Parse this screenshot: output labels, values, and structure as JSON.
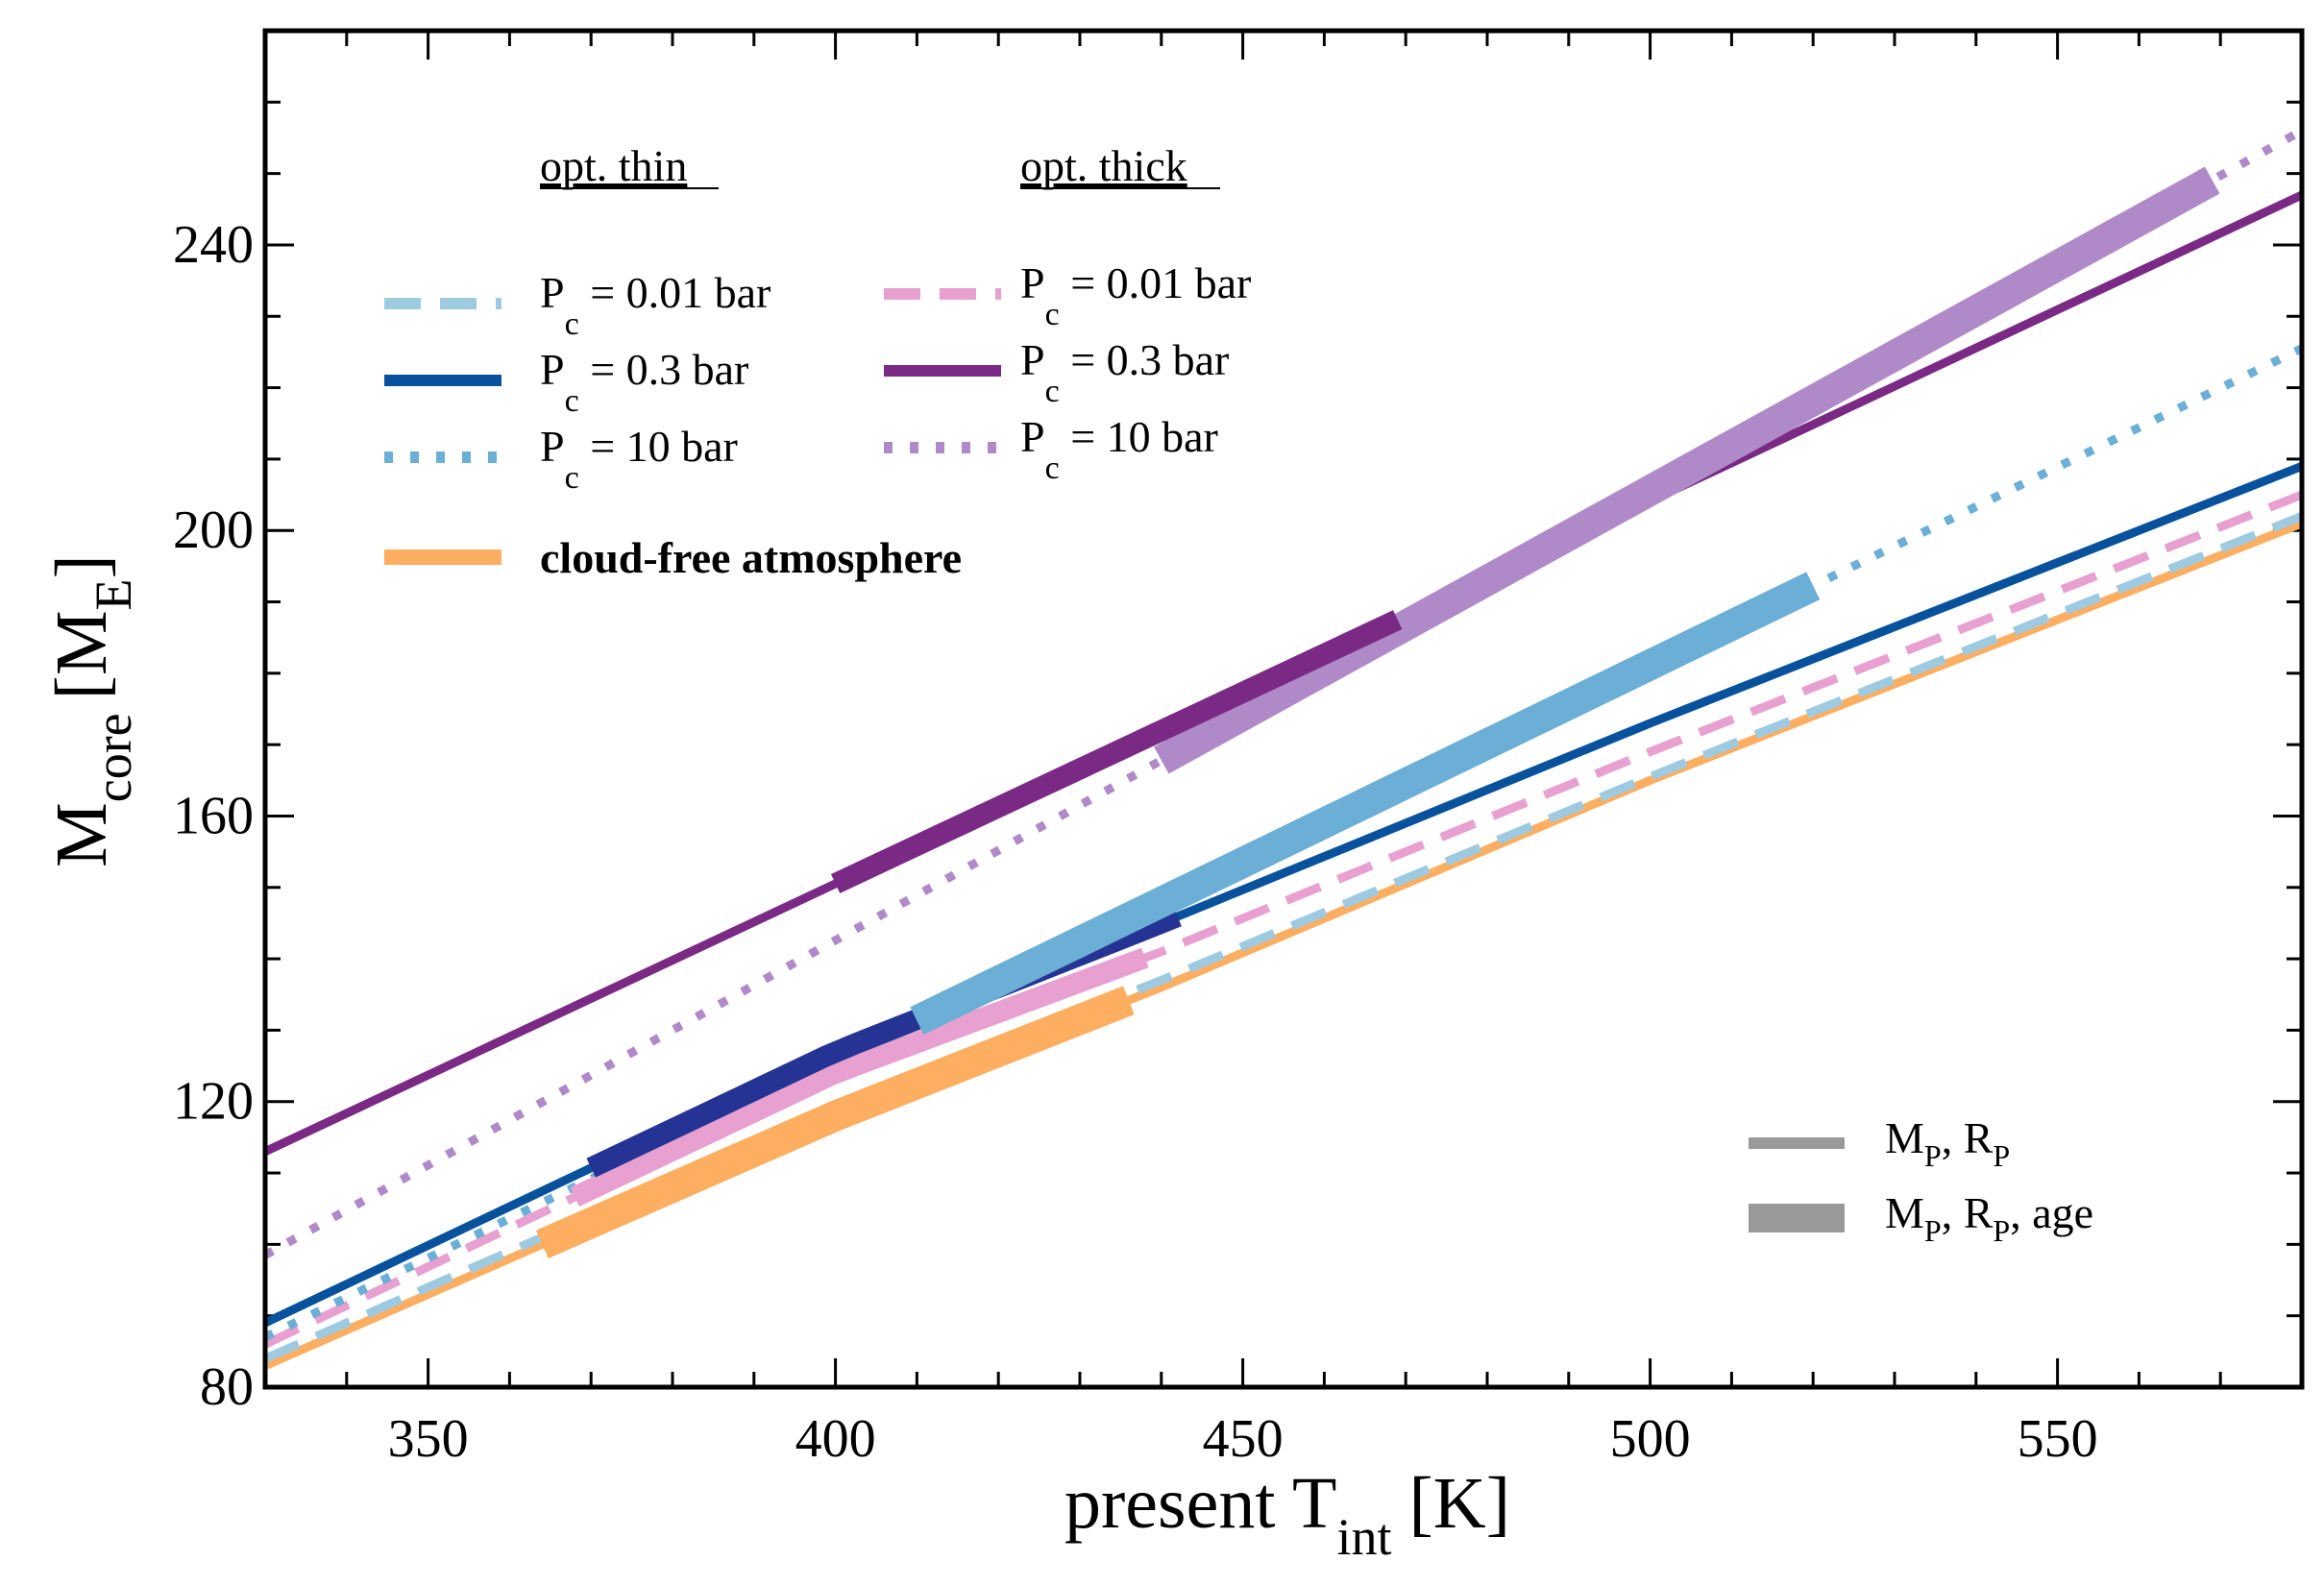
{
  "chart_data": {
    "type": "line",
    "xlabel": "present T",
    "xlabel_sub": "int",
    "xlabel_unit": "[K]",
    "ylabel_main": "M",
    "ylabel_sub": "core",
    "ylabel_unit_open": "[M",
    "ylabel_unit_sub": "E",
    "ylabel_unit_close": "]",
    "xlim": [
      330,
      580
    ],
    "ylim": [
      80,
      270
    ],
    "xticks": [
      350,
      400,
      450,
      500,
      550
    ],
    "yticks": [
      80,
      120,
      160,
      200,
      240
    ],
    "legend": {
      "thin_header": "opt. thin",
      "thick_header": "opt. thick",
      "entries": [
        {
          "group": "thin",
          "prefix": "P",
          "sub": "c",
          "text": " = 0.01 bar",
          "color": "#9ecae1",
          "style": "dashed"
        },
        {
          "group": "thin",
          "prefix": "P",
          "sub": "c",
          "text": " = 0.3 bar",
          "color": "#08519c",
          "style": "solid"
        },
        {
          "group": "thin",
          "prefix": "P",
          "sub": "c",
          "text": " = 10 bar",
          "color": "#6baed6",
          "style": "dotted"
        },
        {
          "group": "thick",
          "prefix": "P",
          "sub": "c",
          "text": " = 0.01 bar",
          "color": "#e7a0d0",
          "style": "dashed"
        },
        {
          "group": "thick",
          "prefix": "P",
          "sub": "c",
          "text": " = 0.3 bar",
          "color": "#7a2a85",
          "style": "solid"
        },
        {
          "group": "thick",
          "prefix": "P",
          "sub": "c",
          "text": " = 10 bar",
          "color": "#b08ac8",
          "style": "dotted"
        }
      ],
      "cloudfree_label": "cloud-free atmosphere",
      "cloudfree_color": "#fdae61",
      "width_key": [
        {
          "label_a": "M",
          "sub_a": "P",
          "label_b": ", R",
          "sub_b": "P",
          "label_c": ""
        },
        {
          "label_a": "M",
          "sub_a": "P",
          "label_b": ", R",
          "sub_b": "P",
          "label_c": ", age"
        }
      ],
      "width_key_color": "#999999"
    },
    "series": [
      {
        "name": "opt. thick, Pc = 0.3 bar",
        "color": "#7a2a85",
        "style": "solid",
        "x": [
          330,
          580
        ],
        "y": [
          113,
          247
        ],
        "segments": [
          {
            "x": [
              400,
              469
            ],
            "w": "mid"
          }
        ]
      },
      {
        "name": "opt. thick, Pc = 10 bar",
        "color": "#b08ac8",
        "style": "dotted",
        "x": [
          330,
          580
        ],
        "y": [
          98.5,
          256
        ],
        "segments": [
          {
            "x": [
              440,
              569
            ],
            "w": "thick"
          }
        ]
      },
      {
        "name": "opt. thin, Pc = 10 bar",
        "color": "#6baed6",
        "style": "dotted",
        "x": [
          330,
          580
        ],
        "y": [
          87,
          225.5
        ],
        "segments": [
          {
            "x": [
              410,
              520
            ],
            "w": "thick"
          }
        ]
      },
      {
        "name": "opt. thin, Pc = 0.3 bar",
        "color": "#08519c",
        "style": "solid",
        "x": [
          330,
          400,
          440,
          500,
          580
        ],
        "y": [
          89,
          127,
          145,
          173,
          209
        ],
        "segments": [
          {
            "x": [
              370,
              442
            ],
            "w": "mid",
            "color": "#253494"
          }
        ]
      },
      {
        "name": "opt. thick, Pc = 0.01 bar",
        "color": "#e7a0d0",
        "style": "dashed",
        "x": [
          330,
          400,
          440,
          500,
          580
        ],
        "y": [
          86,
          124,
          141,
          169,
          205
        ],
        "segments": [
          {
            "x": [
              368,
              438
            ],
            "w": "mid"
          }
        ]
      },
      {
        "name": "opt. thin, Pc = 0.01 bar",
        "color": "#9ecae1",
        "style": "dashed",
        "x": [
          330,
          400,
          440,
          500,
          580
        ],
        "y": [
          84,
          119,
          137,
          165.5,
          202
        ],
        "segments": []
      },
      {
        "name": "cloud-free atmosphere",
        "color": "#fdae61",
        "style": "solid",
        "x": [
          330,
          400,
          440,
          500,
          580
        ],
        "y": [
          83,
          118,
          136,
          165,
          201
        ],
        "segments": [
          {
            "x": [
              364,
              436
            ],
            "w": "thick"
          }
        ]
      }
    ]
  }
}
